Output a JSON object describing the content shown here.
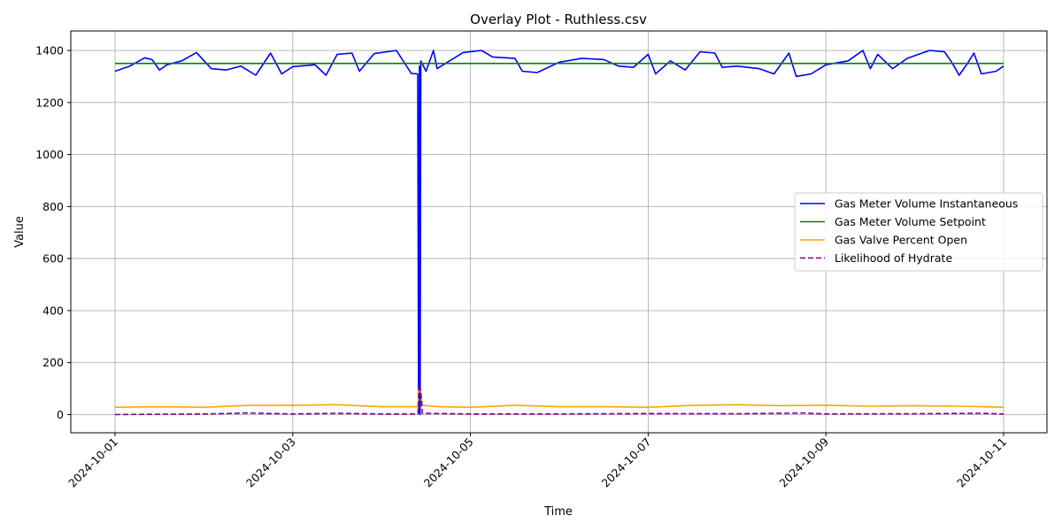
{
  "chart_data": {
    "type": "line",
    "title": "Overlay Plot - Ruthless.csv",
    "xlabel": "Time",
    "ylabel": "Value",
    "x_range": [
      "2024-10-01",
      "2024-10-11"
    ],
    "ylim": [
      -70,
      1475
    ],
    "x_ticks": [
      "2024-10-01",
      "2024-10-03",
      "2024-10-05",
      "2024-10-07",
      "2024-10-09",
      "2024-10-11"
    ],
    "y_ticks": [
      0,
      200,
      400,
      600,
      800,
      1000,
      1200,
      1400
    ],
    "grid": true,
    "legend_position": "center-right",
    "series": [
      {
        "name": "Gas Meter Volume Instantaneous",
        "color": "#0000ff",
        "dash": "solid",
        "points": [
          [
            "2024-10-01 00:00",
            1320
          ],
          [
            "2024-10-01 04:00",
            1340
          ],
          [
            "2024-10-01 08:00",
            1372
          ],
          [
            "2024-10-01 10:00",
            1365
          ],
          [
            "2024-10-01 12:00",
            1325
          ],
          [
            "2024-10-01 14:00",
            1345
          ],
          [
            "2024-10-01 18:00",
            1360
          ],
          [
            "2024-10-01 22:00",
            1392
          ],
          [
            "2024-10-02 02:00",
            1330
          ],
          [
            "2024-10-02 06:00",
            1325
          ],
          [
            "2024-10-02 10:00",
            1340
          ],
          [
            "2024-10-02 14:00",
            1305
          ],
          [
            "2024-10-02 18:00",
            1390
          ],
          [
            "2024-10-02 21:00",
            1310
          ],
          [
            "2024-10-03 00:00",
            1338
          ],
          [
            "2024-10-03 06:00",
            1345
          ],
          [
            "2024-10-03 09:00",
            1305
          ],
          [
            "2024-10-03 12:00",
            1385
          ],
          [
            "2024-10-03 16:00",
            1390
          ],
          [
            "2024-10-03 18:00",
            1320
          ],
          [
            "2024-10-03 22:00",
            1388
          ],
          [
            "2024-10-04 04:00",
            1400
          ],
          [
            "2024-10-04 08:00",
            1312
          ],
          [
            "2024-10-04 09:45",
            1310
          ],
          [
            "2024-10-04 10:00",
            5
          ],
          [
            "2024-10-04 10:12",
            1340
          ],
          [
            "2024-10-04 10:24",
            0
          ],
          [
            "2024-10-04 10:36",
            1360
          ],
          [
            "2024-10-04 12:00",
            1320
          ],
          [
            "2024-10-04 14:00",
            1400
          ],
          [
            "2024-10-04 15:00",
            1330
          ],
          [
            "2024-10-04 22:00",
            1392
          ],
          [
            "2024-10-05 03:00",
            1400
          ],
          [
            "2024-10-05 06:00",
            1375
          ],
          [
            "2024-10-05 12:00",
            1370
          ],
          [
            "2024-10-05 14:00",
            1320
          ],
          [
            "2024-10-05 18:00",
            1315
          ],
          [
            "2024-10-06 00:00",
            1355
          ],
          [
            "2024-10-06 06:00",
            1370
          ],
          [
            "2024-10-06 12:00",
            1365
          ],
          [
            "2024-10-06 16:00",
            1340
          ],
          [
            "2024-10-06 20:00",
            1335
          ],
          [
            "2024-10-07 00:00",
            1385
          ],
          [
            "2024-10-07 02:00",
            1310
          ],
          [
            "2024-10-07 06:00",
            1360
          ],
          [
            "2024-10-07 10:00",
            1325
          ],
          [
            "2024-10-07 14:00",
            1395
          ],
          [
            "2024-10-07 18:00",
            1390
          ],
          [
            "2024-10-07 20:00",
            1335
          ],
          [
            "2024-10-08 00:00",
            1340
          ],
          [
            "2024-10-08 06:00",
            1330
          ],
          [
            "2024-10-08 10:00",
            1310
          ],
          [
            "2024-10-08 14:00",
            1390
          ],
          [
            "2024-10-08 16:00",
            1300
          ],
          [
            "2024-10-08 20:00",
            1310
          ],
          [
            "2024-10-09 00:00",
            1345
          ],
          [
            "2024-10-09 06:00",
            1360
          ],
          [
            "2024-10-09 10:00",
            1400
          ],
          [
            "2024-10-09 12:00",
            1330
          ],
          [
            "2024-10-09 14:00",
            1385
          ],
          [
            "2024-10-09 18:00",
            1330
          ],
          [
            "2024-10-09 22:00",
            1370
          ],
          [
            "2024-10-10 04:00",
            1400
          ],
          [
            "2024-10-10 08:00",
            1395
          ],
          [
            "2024-10-10 10:00",
            1355
          ],
          [
            "2024-10-10 12:00",
            1305
          ],
          [
            "2024-10-10 14:00",
            1345
          ],
          [
            "2024-10-10 16:00",
            1390
          ],
          [
            "2024-10-10 18:00",
            1310
          ],
          [
            "2024-10-10 22:00",
            1320
          ],
          [
            "2024-10-11 00:00",
            1340
          ]
        ]
      },
      {
        "name": "Gas Meter Volume Setpoint",
        "color": "#008000",
        "dash": "solid",
        "points": [
          [
            "2024-10-01 00:00",
            1350
          ],
          [
            "2024-10-11 00:00",
            1350
          ]
        ]
      },
      {
        "name": "Gas Valve Percent Open",
        "color": "#ffa500",
        "dash": "solid",
        "points": [
          [
            "2024-10-01 00:00",
            28
          ],
          [
            "2024-10-01 12:00",
            30
          ],
          [
            "2024-10-02 00:00",
            28
          ],
          [
            "2024-10-02 12:00",
            35
          ],
          [
            "2024-10-03 00:00",
            36
          ],
          [
            "2024-10-03 12:00",
            38
          ],
          [
            "2024-10-04 00:00",
            30
          ],
          [
            "2024-10-04 09:50",
            30
          ],
          [
            "2024-10-04 10:05",
            100
          ],
          [
            "2024-10-04 10:30",
            100
          ],
          [
            "2024-10-04 11:00",
            35
          ],
          [
            "2024-10-04 16:00",
            30
          ],
          [
            "2024-10-05 00:00",
            28
          ],
          [
            "2024-10-05 12:00",
            36
          ],
          [
            "2024-10-06 00:00",
            30
          ],
          [
            "2024-10-06 12:00",
            30
          ],
          [
            "2024-10-07 00:00",
            28
          ],
          [
            "2024-10-07 12:00",
            35
          ],
          [
            "2024-10-08 00:00",
            38
          ],
          [
            "2024-10-08 12:00",
            34
          ],
          [
            "2024-10-09 00:00",
            36
          ],
          [
            "2024-10-09 12:00",
            32
          ],
          [
            "2024-10-10 00:00",
            34
          ],
          [
            "2024-10-10 12:00",
            32
          ],
          [
            "2024-10-11 00:00",
            28
          ]
        ]
      },
      {
        "name": "Likelihood of Hydrate",
        "color": "#800080",
        "dash": "dashed",
        "points": [
          [
            "2024-10-01 00:00",
            0
          ],
          [
            "2024-10-02 00:00",
            2
          ],
          [
            "2024-10-02 12:00",
            6
          ],
          [
            "2024-10-03 00:00",
            2
          ],
          [
            "2024-10-03 12:00",
            5
          ],
          [
            "2024-10-04 00:00",
            2
          ],
          [
            "2024-10-04 09:50",
            2
          ],
          [
            "2024-10-04 10:05",
            100
          ],
          [
            "2024-10-04 10:30",
            100
          ],
          [
            "2024-10-04 11:00",
            5
          ],
          [
            "2024-10-05 00:00",
            2
          ],
          [
            "2024-10-06 00:00",
            2
          ],
          [
            "2024-10-07 00:00",
            4
          ],
          [
            "2024-10-08 00:00",
            3
          ],
          [
            "2024-10-08 18:00",
            6
          ],
          [
            "2024-10-09 00:00",
            2
          ],
          [
            "2024-10-10 00:00",
            3
          ],
          [
            "2024-10-10 18:00",
            5
          ],
          [
            "2024-10-11 00:00",
            2
          ]
        ]
      }
    ]
  }
}
